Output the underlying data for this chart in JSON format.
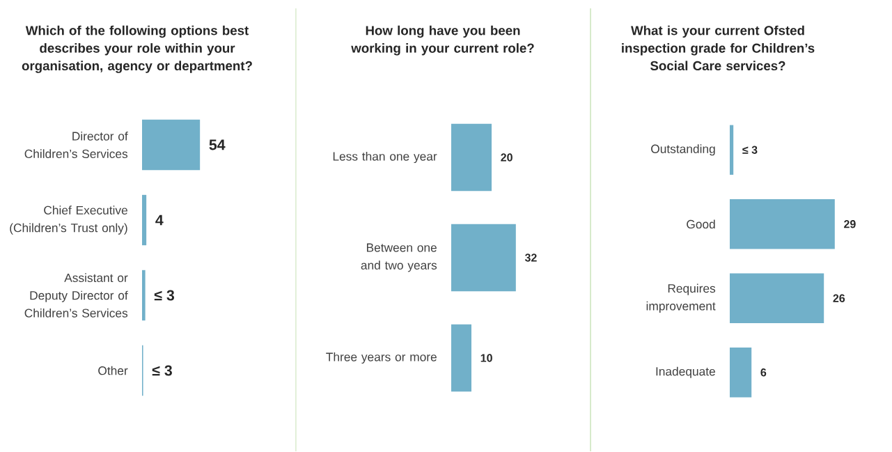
{
  "chart_data": [
    {
      "type": "bar",
      "orientation": "horizontal",
      "title": "Which of the following options best describes your role within your organisation, agency or department?",
      "categories": [
        "Director of Children’s Services",
        "Chief Executive (Children’s Trust only)",
        "Assistant or Deputy Director of Children’s Services",
        "Other"
      ],
      "values": [
        54,
        4,
        3,
        1
      ],
      "value_labels": [
        "54",
        "4",
        "≤ 3",
        "≤ 3"
      ],
      "color": "#71b0c9"
    },
    {
      "type": "bar",
      "orientation": "horizontal",
      "title": "How long have you been working in your current role?",
      "categories": [
        "Less than one year",
        "Between one and two years",
        "Three years or more"
      ],
      "values": [
        20,
        32,
        10
      ],
      "value_labels": [
        "20",
        "32",
        "10"
      ],
      "color": "#71b0c9"
    },
    {
      "type": "bar",
      "orientation": "horizontal",
      "title": "What is your current Ofsted inspection grade for Children’s Social Care services?",
      "categories": [
        "Outstanding",
        "Good",
        "Requires improvement",
        "Inadequate"
      ],
      "values": [
        1,
        29,
        26,
        6
      ],
      "value_labels": [
        "≤ 3",
        "29",
        "26",
        "6"
      ],
      "color": "#71b0c9"
    }
  ]
}
